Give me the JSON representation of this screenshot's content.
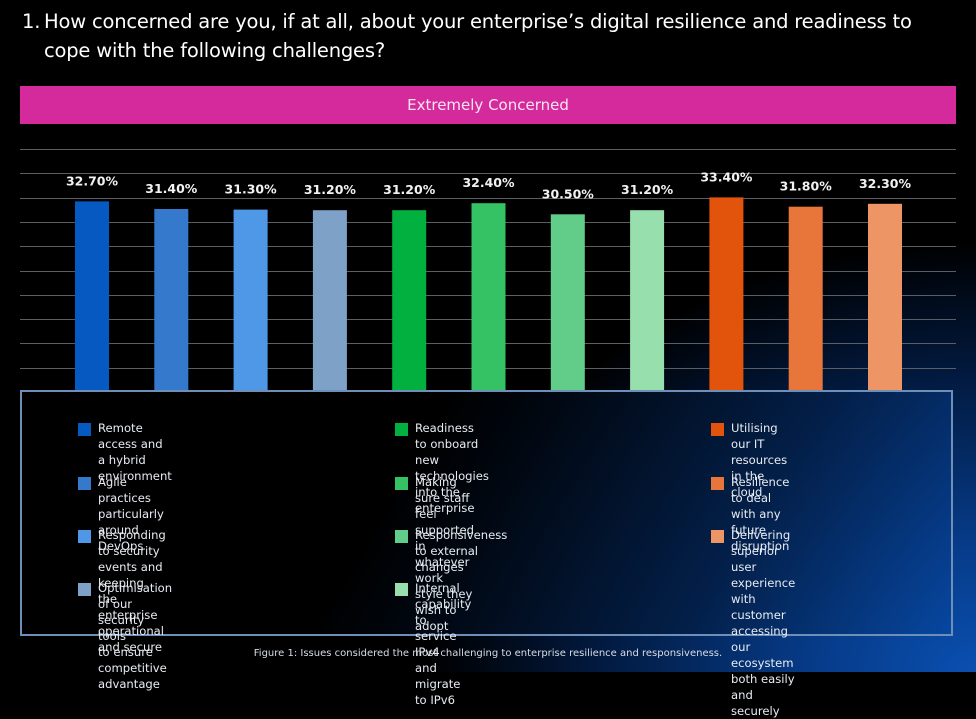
{
  "question": {
    "number": "1.",
    "text": "How concerned are you, if at all, about your enterprise’s digital resilience and readiness to cope with the following challenges?"
  },
  "banner": {
    "label": "Extremely Concerned",
    "color": "#d42a9b"
  },
  "chart_data": {
    "type": "bar",
    "title": "Extremely Concerned",
    "xlabel": "",
    "ylabel": "",
    "ylim": [
      0,
      41.7
    ],
    "grid": true,
    "gridlines": 10,
    "legend_position": "bottom",
    "categories": [
      "Remote access and a hybrid environment",
      "Agile practices particularly around DevOps",
      "Responding to security events and keeping the enterprise operational and secure",
      "Optimisation of our security tools to ensure competitive advantage",
      "Readiness to onboard new technologies into the enterprise",
      "Making sure staff feel supported in whatever work style they wish to adopt",
      "Responsiveness to external changes",
      "Internal capability to service IPv4 and migrate to IPv6",
      "Utilising our IT resources in the cloud",
      "Resilience to deal with any future disruption",
      "Delivering superior user experience with customer accessing our ecosystem both easily and securely"
    ],
    "values": [
      32.7,
      31.4,
      31.3,
      31.2,
      31.2,
      32.4,
      30.5,
      31.2,
      33.4,
      31.8,
      32.3
    ],
    "value_labels": [
      "32.70%",
      "31.40%",
      "31.30%",
      "31.20%",
      "31.20%",
      "32.40%",
      "30.50%",
      "31.20%",
      "33.40%",
      "31.80%",
      "32.30%"
    ],
    "colors": [
      "#0559c1",
      "#3479cc",
      "#4f98e8",
      "#7ea1c8",
      "#02b040",
      "#34c264",
      "#62cd88",
      "#98dfae",
      "#e2540c",
      "#e8763a",
      "#ee9566"
    ]
  },
  "legend": {
    "columns": [
      [
        {
          "label": "Remote access and a hybrid environment",
          "color": "#0559c1"
        },
        {
          "label": "Agile practices particularly around DevOps",
          "color": "#3479cc"
        },
        {
          "label": "Responding to security events and keeping\nthe enterprise operational and secure",
          "color": "#4f98e8"
        },
        {
          "label": "Optimisation of our security tools\nto ensure competitive advantage",
          "color": "#7ea1c8"
        }
      ],
      [
        {
          "label": "Readiness to onboard new technologies\ninto the enterprise",
          "color": "#02b040"
        },
        {
          "label": "Making sure staff feel supported in\nwhatever work style they wish to adopt",
          "color": "#34c264"
        },
        {
          "label": "Responsiveness to external changes",
          "color": "#62cd88"
        },
        {
          "label": "Internal capability to service IPv4\nand migrate to IPv6",
          "color": "#98dfae"
        }
      ],
      [
        {
          "label": "Utilising our IT resources\nin the cloud",
          "color": "#e2540c"
        },
        {
          "label": "Resilience to deal with any\nfuture disruption",
          "color": "#e8763a"
        },
        {
          "label": "Delivering superior user experience\nwith customer accessing our\necosystem both easily and securely",
          "color": "#ee9566"
        }
      ]
    ]
  },
  "caption": "Figure 1: Issues considered the most challenging to enterprise resilience and responsiveness."
}
